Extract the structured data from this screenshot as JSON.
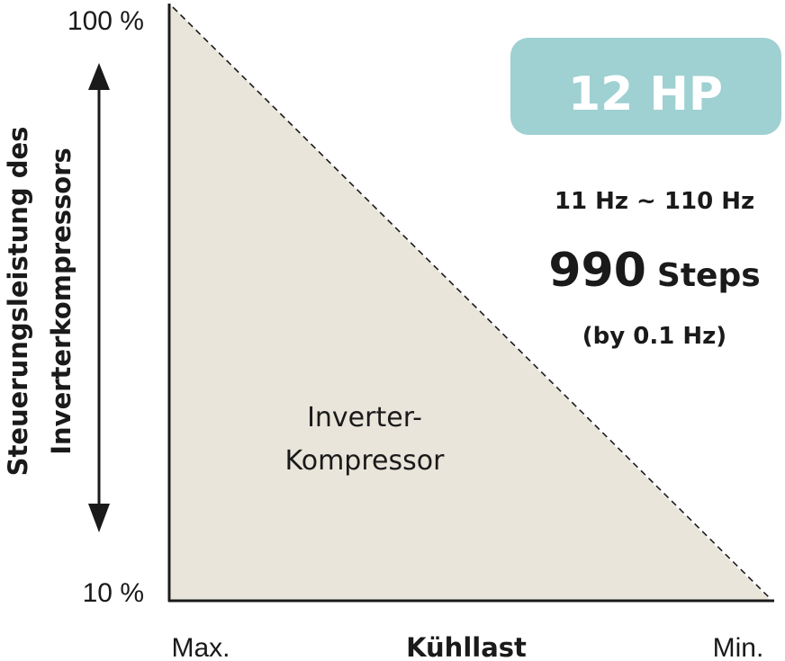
{
  "axes": {
    "y_top": "100 %",
    "y_bottom": "10 %",
    "y_label_lines": [
      "Steuerungsleistung des",
      "Inverterkompressors"
    ],
    "x_left": "Max.",
    "x_center": "Kühllast",
    "x_right": "Min."
  },
  "area_label": [
    "Inverter-",
    "Kompressor"
  ],
  "badge": "12 HP",
  "specs": {
    "range": "11 Hz ~ 110 Hz",
    "steps_number": "990",
    "steps_unit": "Steps",
    "resolution": "(by 0.1 Hz)"
  }
}
